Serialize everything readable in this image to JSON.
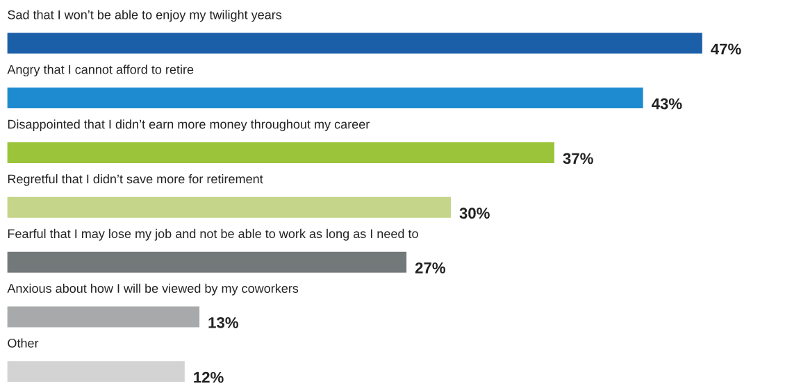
{
  "chart_data": {
    "type": "bar",
    "orientation": "horizontal",
    "categories": [
      "Sad that I won’t be able to enjoy my twilight years",
      "Angry that I cannot afford to retire",
      "Disappointed that I didn’t earn more money throughout my career",
      "Regretful that I didn’t save more for retirement",
      "Fearful that I may lose my job and not be able to work as long as I need to",
      "Anxious about how I will be viewed by my coworkers",
      "Other"
    ],
    "values": [
      47,
      43,
      37,
      30,
      27,
      13,
      12
    ],
    "colors": [
      "#1a5fa8",
      "#1e8bd0",
      "#9bc43a",
      "#c5d589",
      "#737879",
      "#a8a9aa",
      "#d3d3d3"
    ],
    "value_labels": [
      "47%",
      "43%",
      "37%",
      "30%",
      "27%",
      "13%",
      "12%"
    ]
  }
}
